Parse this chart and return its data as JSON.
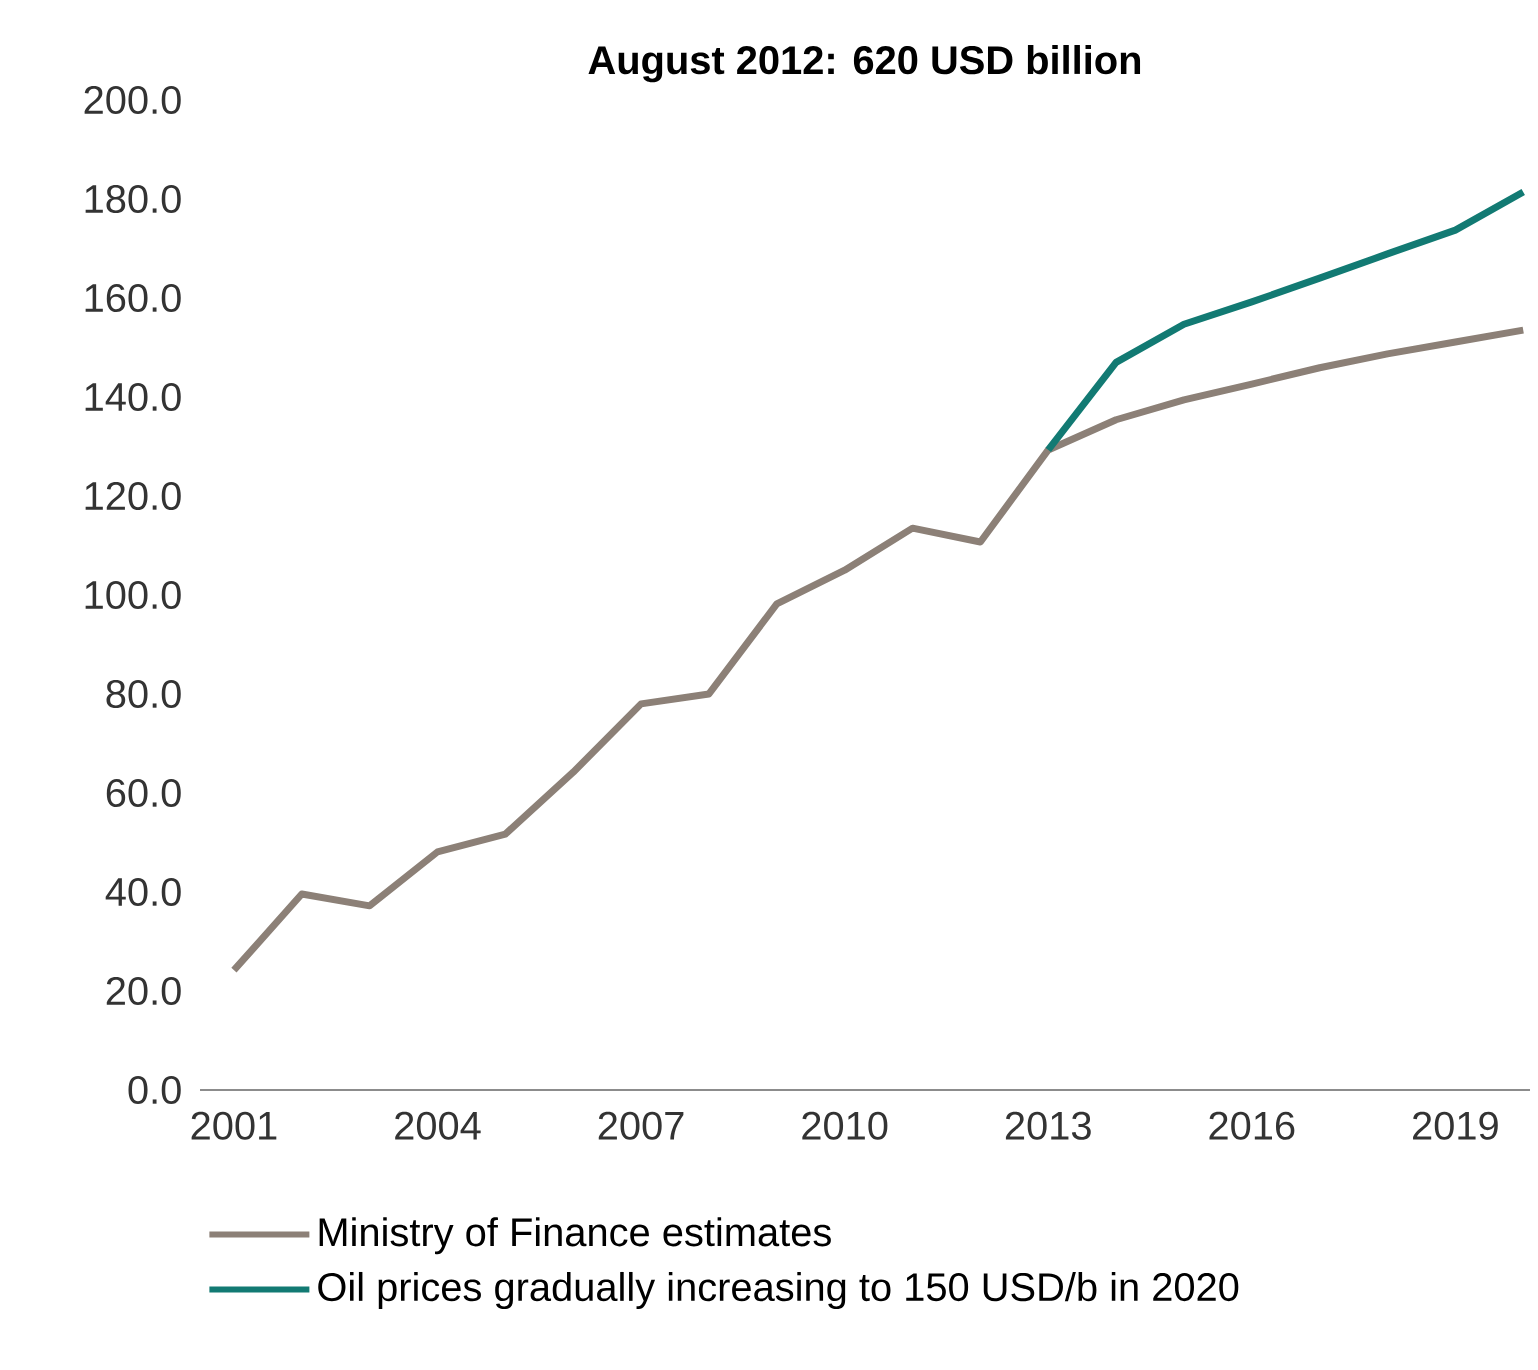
{
  "chart_data": {
    "type": "line",
    "title": "August 2012: 620 USD billion",
    "x": [
      2001,
      2002,
      2003,
      2004,
      2005,
      2006,
      2007,
      2008,
      2009,
      2010,
      2011,
      2012,
      2013,
      2014,
      2015,
      2016,
      2017,
      2018,
      2019,
      2020
    ],
    "series": [
      {
        "name": "Ministry of Finance estimates",
        "color": "#8c8077",
        "values": [
          24.2,
          39.6,
          37.2,
          48.1,
          51.7,
          64.2,
          78,
          80,
          98.2,
          105,
          113.5,
          110.7,
          129.3,
          135.4,
          139.4,
          142.6,
          145.9,
          148.7,
          151.1,
          153.5
        ]
      },
      {
        "name": "Oil prices gradually increasing to 150 USD/b in 2020",
        "color": "#127a73",
        "x": [
          2013,
          2014,
          2015,
          2016,
          2017,
          2018,
          2019,
          2020
        ],
        "values": [
          129.3,
          147,
          154.7,
          159.2,
          164,
          168.9,
          173.7,
          181.4
        ]
      }
    ],
    "xlim": [
      2000.5,
      2020.1
    ],
    "xticks": [
      2001,
      2004,
      2007,
      2010,
      2013,
      2016,
      2019
    ],
    "ylim": [
      0,
      200
    ],
    "yticks": [
      {
        "value": 0,
        "label": "0.0"
      },
      {
        "value": 20,
        "label": "20.0"
      },
      {
        "value": 40,
        "label": "40.0"
      },
      {
        "value": 60,
        "label": "60.0"
      },
      {
        "value": 80,
        "label": "80.0"
      },
      {
        "value": 100,
        "label": "100.0"
      },
      {
        "value": 120,
        "label": "120.0"
      },
      {
        "value": 140,
        "label": "140.0"
      },
      {
        "value": 160,
        "label": "160.0"
      },
      {
        "value": 180,
        "label": "180.0"
      },
      {
        "value": 200,
        "label": "200.0"
      }
    ],
    "legend": "bottom",
    "grid": false,
    "marker": "none",
    "line_style": "solid"
  }
}
